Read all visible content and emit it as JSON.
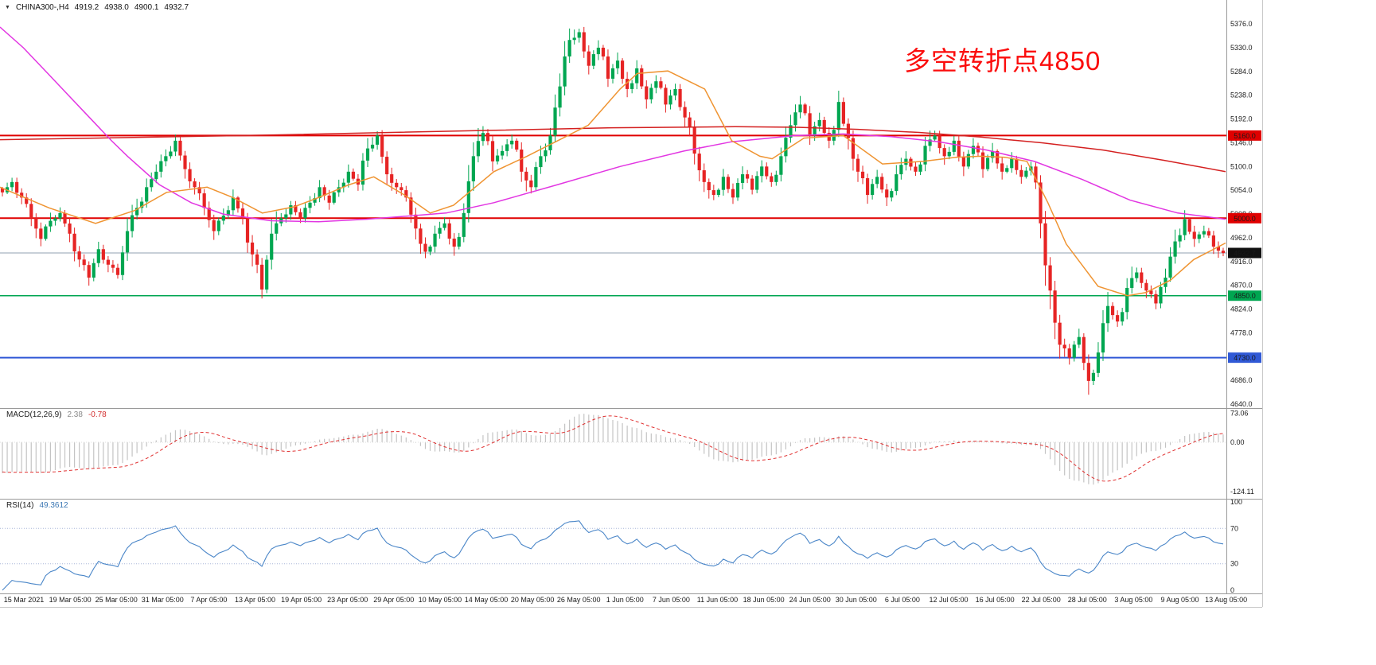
{
  "header": {
    "collapse_icon": "▼",
    "symbol_period": "CHINA300-,H4",
    "open": "4919.2",
    "high": "4938.0",
    "low": "4900.1",
    "close": "4932.7"
  },
  "annotation": {
    "text": "多空转折点4850",
    "color": "#fb0d0d"
  },
  "chart_data": {
    "type": "candlestick",
    "symbol": "CHINA300-",
    "timeframe": "H4",
    "x_labels": [
      "15 Mar 2021",
      "19 Mar 05:00",
      "25 Mar 05:00",
      "31 Mar 05:00",
      "7 Apr 05:00",
      "13 Apr 05:00",
      "19 Apr 05:00",
      "23 Apr 05:00",
      "29 Apr 05:00",
      "10 May 05:00",
      "14 May 05:00",
      "20 May 05:00",
      "26 May 05:00",
      "1 Jun 05:00",
      "7 Jun 05:00",
      "11 Jun 05:00",
      "18 Jun 05:00",
      "24 Jun 05:00",
      "30 Jun 05:00",
      "6 Jul 05:00",
      "12 Jul 05:00",
      "16 Jul 05:00",
      "22 Jul 05:00",
      "28 Jul 05:00",
      "3 Aug 05:00",
      "9 Aug 05:00",
      "13 Aug 05:00"
    ],
    "price_panel": {
      "y_ticks": [
        "5376.0",
        "5330.0",
        "5284.0",
        "5238.0",
        "5192.0",
        "5146.0",
        "5100.0",
        "5054.0",
        "5008.0",
        "4962.0",
        "4916.0",
        "4870.0",
        "4824.0",
        "4778.0",
        "4732.0",
        "4686.0",
        "4640.0"
      ],
      "price_range_top": 5390,
      "price_range_bottom": 4634,
      "candle_up_color": "#00a651",
      "candle_down_color": "#e62424",
      "last_bar": {
        "open": 4919.2,
        "high": 4938.0,
        "low": 4900.1,
        "close": 4932.7
      },
      "last_price": {
        "value": 4932.7,
        "badge": "4932.7",
        "line_color": "#90a0b0",
        "badge_color": "#111111"
      },
      "hlines": [
        {
          "price": 5160,
          "badge": "5160.0",
          "color": "#e00000",
          "width": 2
        },
        {
          "price": 5000,
          "badge": "5000.0",
          "color": "#e00000",
          "width": 2
        },
        {
          "price": 4850,
          "badge": "4850.0",
          "color": "#00a651",
          "width": 1.5
        },
        {
          "price": 4730,
          "badge": "4730.0",
          "color": "#3059d6",
          "width": 2
        }
      ],
      "closes_h8": [
        5050,
        5070,
        5040,
        5000,
        4960,
        4995,
        5010,
        4970,
        4920,
        4885,
        4940,
        4910,
        4890,
        4975,
        5020,
        5060,
        5090,
        5120,
        5150,
        5095,
        5060,
        5020,
        4975,
        5005,
        5040,
        5000,
        4930,
        4862,
        4970,
        5000,
        5025,
        5000,
        5030,
        5060,
        5030,
        5060,
        5090,
        5065,
        5135,
        5160,
        5085,
        5060,
        5040,
        4980,
        4935,
        4970,
        4990,
        4945,
        5010,
        5120,
        5165,
        5110,
        5130,
        5150,
        5090,
        5060,
        5120,
        5160,
        5255,
        5345,
        5360,
        5295,
        5330,
        5270,
        5305,
        5250,
        5290,
        5230,
        5265,
        5220,
        5250,
        5195,
        5125,
        5070,
        5045,
        5080,
        5040,
        5085,
        5055,
        5100,
        5070,
        5120,
        5180,
        5220,
        5160,
        5190,
        5150,
        5225,
        5155,
        5090,
        5045,
        5080,
        5040,
        5085,
        5115,
        5090,
        5140,
        5160,
        5120,
        5150,
        5100,
        5140,
        5095,
        5130,
        5090,
        5115,
        5080,
        5100,
        4990,
        4860,
        4755,
        4730,
        4770,
        4685,
        4740,
        4830,
        4800,
        4865,
        4895,
        4860,
        4835,
        4885,
        4955,
        4998,
        4960,
        4975,
        4945,
        4932.7
      ],
      "ma_overlays": [
        {
          "name": "ma-slow-red",
          "color": "#d42020",
          "points": [
            [
              0,
              5152
            ],
            [
              0.1,
              5156
            ],
            [
              0.2,
              5160
            ],
            [
              0.3,
              5165
            ],
            [
              0.4,
              5170
            ],
            [
              0.5,
              5175
            ],
            [
              0.6,
              5177
            ],
            [
              0.65,
              5176
            ],
            [
              0.7,
              5172
            ],
            [
              0.75,
              5166
            ],
            [
              0.8,
              5157
            ],
            [
              0.85,
              5146
            ],
            [
              0.9,
              5132
            ],
            [
              0.95,
              5112
            ],
            [
              1,
              5090
            ]
          ]
        },
        {
          "name": "ma-long-magenta",
          "color": "#e236e2",
          "points": [
            [
              0,
              5370
            ],
            [
              0.019,
              5330
            ],
            [
              0.039,
              5280
            ],
            [
              0.065,
              5215
            ],
            [
              0.091,
              5150
            ],
            [
              0.104,
              5120
            ],
            [
              0.13,
              5065
            ],
            [
              0.156,
              5030
            ],
            [
              0.182,
              5008
            ],
            [
              0.221,
              4995
            ],
            [
              0.26,
              4993
            ],
            [
              0.299,
              4998
            ],
            [
              0.338,
              5005
            ],
            [
              0.364,
              5010
            ],
            [
              0.403,
              5030
            ],
            [
              0.455,
              5065
            ],
            [
              0.506,
              5100
            ],
            [
              0.558,
              5130
            ],
            [
              0.597,
              5148
            ],
            [
              0.649,
              5160
            ],
            [
              0.688,
              5163
            ],
            [
              0.727,
              5158
            ],
            [
              0.766,
              5148
            ],
            [
              0.805,
              5132
            ],
            [
              0.844,
              5110
            ],
            [
              0.883,
              5075
            ],
            [
              0.922,
              5035
            ],
            [
              0.961,
              5010
            ],
            [
              1,
              4998
            ]
          ]
        },
        {
          "name": "ma-fast-orange",
          "color": "#ef9432",
          "points": [
            [
              0,
              5060
            ],
            [
              0.04,
              5020
            ],
            [
              0.078,
              4990
            ],
            [
              0.11,
              5015
            ],
            [
              0.136,
              5050
            ],
            [
              0.169,
              5060
            ],
            [
              0.19,
              5040
            ],
            [
              0.214,
              5010
            ],
            [
              0.24,
              5022
            ],
            [
              0.26,
              5040
            ],
            [
              0.285,
              5065
            ],
            [
              0.305,
              5080
            ],
            [
              0.33,
              5045
            ],
            [
              0.351,
              5010
            ],
            [
              0.37,
              5025
            ],
            [
              0.403,
              5090
            ],
            [
              0.43,
              5120
            ],
            [
              0.455,
              5150
            ],
            [
              0.48,
              5180
            ],
            [
              0.506,
              5250
            ],
            [
              0.52,
              5280
            ],
            [
              0.545,
              5285
            ],
            [
              0.575,
              5250
            ],
            [
              0.597,
              5150
            ],
            [
              0.62,
              5120
            ],
            [
              0.63,
              5115
            ],
            [
              0.656,
              5155
            ],
            [
              0.688,
              5160
            ],
            [
              0.72,
              5105
            ],
            [
              0.753,
              5110
            ],
            [
              0.78,
              5118
            ],
            [
              0.8,
              5120
            ],
            [
              0.82,
              5118
            ],
            [
              0.838,
              5110
            ],
            [
              0.855,
              5030
            ],
            [
              0.87,
              4950
            ],
            [
              0.896,
              4868
            ],
            [
              0.92,
              4850
            ],
            [
              0.935,
              4856
            ],
            [
              0.955,
              4880
            ],
            [
              0.974,
              4920
            ],
            [
              1,
              4952
            ]
          ]
        }
      ]
    },
    "macd_panel": {
      "label": "MACD(12,26,9)",
      "value_main": "2.38",
      "value_signal": "-0.78",
      "y_ticks": [
        "73.06",
        "0.00",
        "-124.11"
      ],
      "hist_color": "#c4c4c4",
      "signal_color": "#e03030"
    },
    "rsi_panel": {
      "label": "RSI(14)",
      "value": "49.3612",
      "levels": [
        70,
        30
      ],
      "y_ticks": [
        "100",
        "70",
        "30",
        "0"
      ],
      "line_color": "#4a86c8"
    }
  }
}
